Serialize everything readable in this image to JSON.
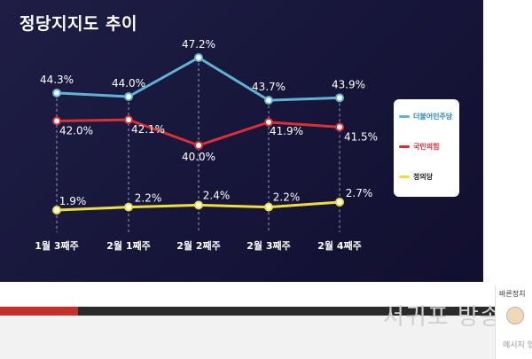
{
  "title": "정당지지도 추이",
  "colors": {
    "background": "#1a1a3e",
    "democratic": "#5fb4d3",
    "ppp": "#d93035",
    "justice": "#f0dc3c"
  },
  "chart_data": {
    "type": "line",
    "title": "정당지지도 추이",
    "categories": [
      "1월 3째주",
      "2월 1째주",
      "2월 2째주",
      "2월 3째주",
      "2월 4째주"
    ],
    "series": [
      {
        "name": "더불어민주당",
        "values": [
          44.3,
          44.0,
          47.2,
          43.7,
          43.9
        ],
        "labels": [
          "44.3%",
          "44.0%",
          "47.2%",
          "43.7%",
          "43.9%"
        ],
        "color": "#5fb4d3"
      },
      {
        "name": "국민의힘",
        "values": [
          42.0,
          42.1,
          40.0,
          41.9,
          41.5
        ],
        "labels": [
          "42.0%",
          "42.1%",
          "40.0%",
          "41.9%",
          "41.5%"
        ],
        "color": "#d93035"
      },
      {
        "name": "정의당",
        "values": [
          1.9,
          2.2,
          2.4,
          2.2,
          2.7
        ],
        "labels": [
          "1.9%",
          "2.2%",
          "2.4%",
          "2.2%",
          "2.7%"
        ],
        "color": "#f0dc3c"
      }
    ],
    "grid": false,
    "legend": "right"
  },
  "legend": {
    "items": [
      {
        "label": "더불어민주당",
        "color": "#5fb4d3"
      },
      {
        "label": "국민의힘",
        "color": "#d93035"
      },
      {
        "label": "정의당",
        "color": "#f0dc3c"
      }
    ]
  },
  "player": {
    "progress": 0.147,
    "watermark": "서귀포 방송"
  },
  "chat": {
    "header": "바른정치",
    "input_placeholder": "메시지 입력"
  }
}
